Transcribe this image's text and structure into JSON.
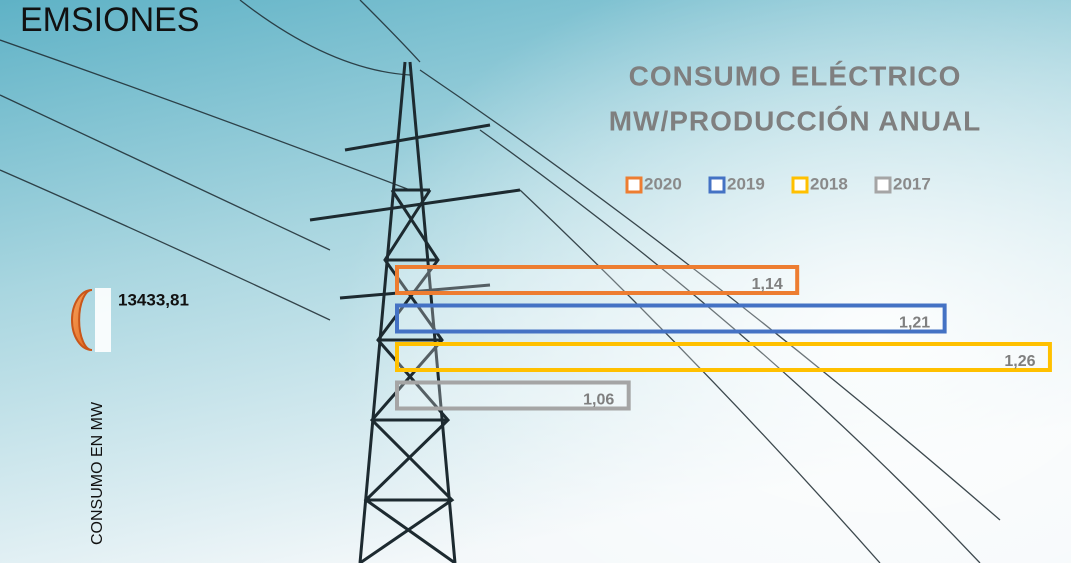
{
  "header": "EMSIONES",
  "indicator": {
    "value": 13433.81,
    "label": "13433,81",
    "axis_label": "CONSUMO EN MW"
  },
  "chart_data": {
    "type": "hbar",
    "title": [
      "CONSUMO ELÉCTRICO",
      "MW/PRODUCCIÓN ANUAL"
    ],
    "legend": "top",
    "xlim": [
      0.95,
      1.27
    ],
    "series": [
      {
        "name": "2020",
        "color": "#ED7D31",
        "values": [
          1.14
        ],
        "value_labels": [
          "1,14"
        ]
      },
      {
        "name": "2019",
        "color": "#4472C4",
        "values": [
          1.21
        ],
        "value_labels": [
          "1,21"
        ]
      },
      {
        "name": "2018",
        "color": "#FFC000",
        "values": [
          1.26
        ],
        "value_labels": [
          "1,26"
        ]
      },
      {
        "name": "2017",
        "color": "#A5A5A5",
        "values": [
          1.06
        ],
        "value_labels": [
          "1,06"
        ]
      }
    ]
  }
}
